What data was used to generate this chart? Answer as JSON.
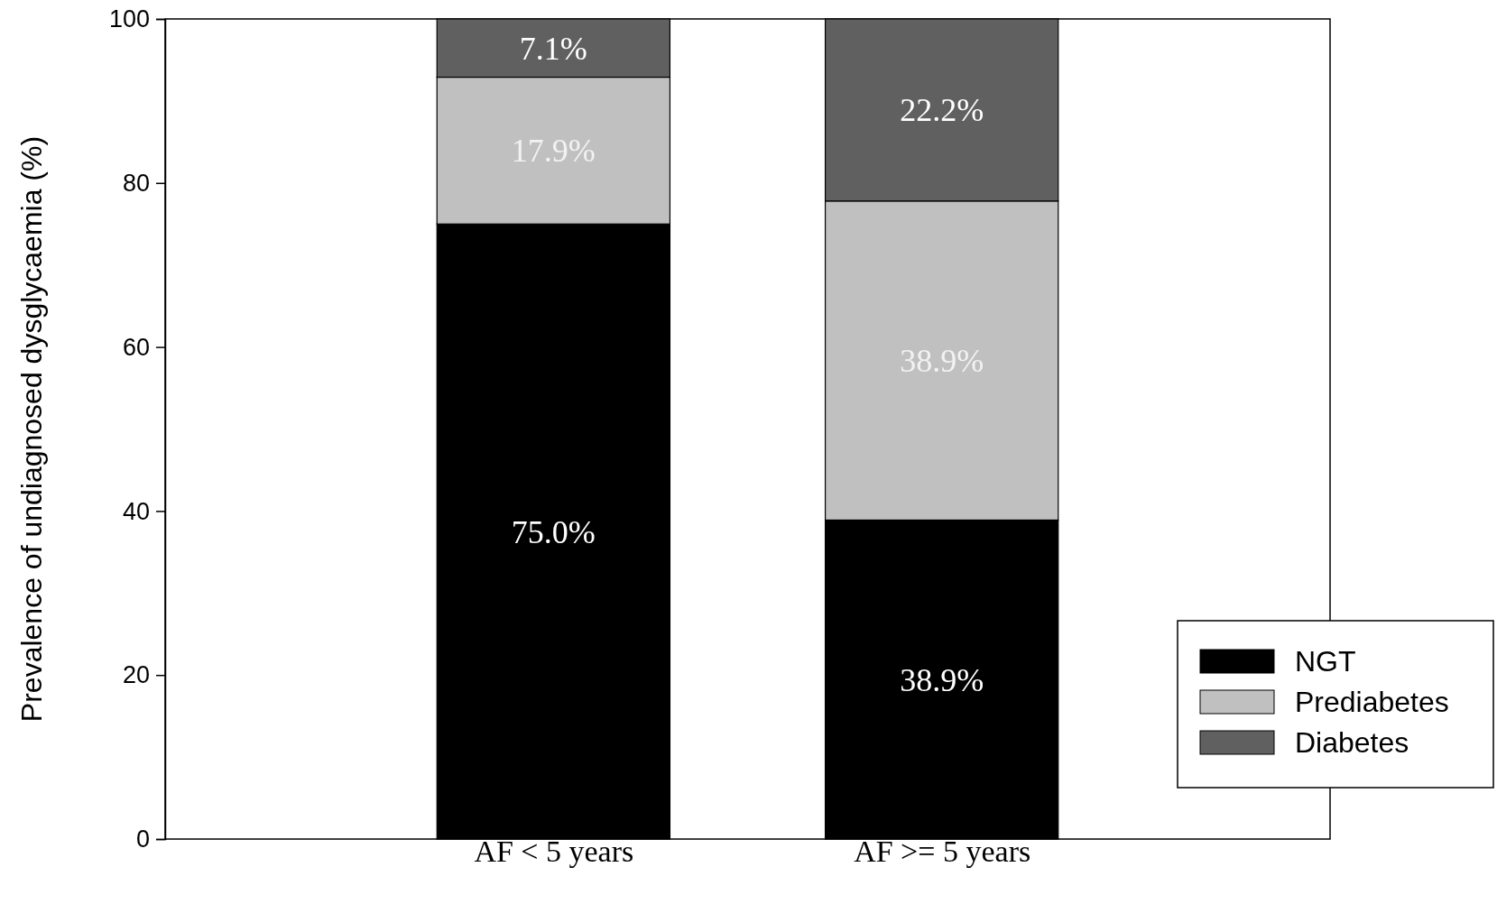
{
  "chart_data": {
    "type": "bar",
    "ylabel": "Prevalence of undiagnosed dysglycaemia (%)",
    "categories": [
      "AF < 5 years",
      "AF >= 5 years"
    ],
    "stacked": true,
    "series": [
      {
        "name": "NGT",
        "color": "#000000",
        "values": [
          75.0,
          38.9
        ],
        "value_labels": [
          "75.0%",
          "38.9%"
        ]
      },
      {
        "name": "Prediabetes",
        "color": "#c0c0c0",
        "values": [
          17.9,
          38.9
        ],
        "value_labels": [
          "17.9%",
          "38.9%"
        ]
      },
      {
        "name": "Diabetes",
        "color": "#606060",
        "values": [
          7.1,
          22.2
        ],
        "value_labels": [
          "7.1%",
          "22.2%"
        ]
      }
    ],
    "ylim": [
      0,
      100
    ],
    "yticks": [
      0,
      20,
      40,
      60,
      80,
      100
    ],
    "grid": false,
    "legend": "bottom right"
  }
}
